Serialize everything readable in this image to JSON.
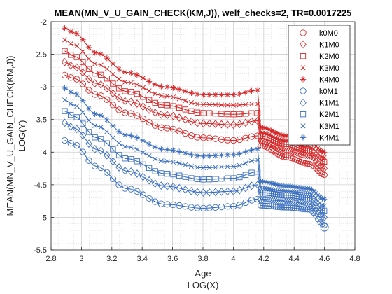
{
  "chart_data": {
    "type": "line",
    "title": "MEAN(MN_V_U_GAIN_CHECK(KM,J)), welf_checks=2, TR=0.0017225",
    "xlabel": "Age",
    "xlabel2": "LOG(X)",
    "ylabel": "MEAN(MN_V_U_GAIN_CHECK(KM,J))",
    "ylabel2": "LOG(Y)",
    "xlim": [
      2.8,
      4.8
    ],
    "ylim": [
      -5.5,
      -2
    ],
    "xticks": [
      "2.8",
      "3",
      "3.2",
      "3.4",
      "3.6",
      "3.8",
      "4",
      "4.2",
      "4.4",
      "4.6",
      "4.8"
    ],
    "yticks": [
      "-2",
      "-2.5",
      "-3",
      "-3.5",
      "-4",
      "-4.5",
      "-5",
      "-5.5"
    ],
    "grid": true,
    "minor_grid": true,
    "legend_position": "top-right",
    "x_range": [
      2.89,
      4.6
    ],
    "break_x": 4.17,
    "series": [
      {
        "name": "k0M0",
        "marker": "circle",
        "color": "#d62728",
        "values": [
          -2.82,
          -2.87,
          -3.12,
          -3.4,
          -3.63,
          -3.78,
          -3.82,
          -3.75,
          -3.9,
          -4.08,
          -4.18,
          -4.35
        ]
      },
      {
        "name": "K1M0",
        "marker": "diamond",
        "color": "#d62728",
        "values": [
          -2.62,
          -2.69,
          -2.95,
          -3.22,
          -3.43,
          -3.56,
          -3.58,
          -3.52,
          -3.83,
          -3.98,
          -4.05,
          -4.25
        ]
      },
      {
        "name": "K2M0",
        "marker": "square",
        "color": "#d62728",
        "values": [
          -2.45,
          -2.53,
          -2.8,
          -3.07,
          -3.28,
          -3.4,
          -3.42,
          -3.4,
          -3.75,
          -3.88,
          -3.98,
          -4.15
        ]
      },
      {
        "name": "K3M0",
        "marker": "x",
        "color": "#d62728",
        "values": [
          -2.28,
          -2.36,
          -2.65,
          -2.93,
          -3.14,
          -3.27,
          -3.28,
          -3.26,
          -3.7,
          -3.82,
          -3.92,
          -4.08
        ]
      },
      {
        "name": "K4M0",
        "marker": "asterisk",
        "color": "#d62728",
        "values": [
          -2.1,
          -2.17,
          -2.48,
          -2.78,
          -3.0,
          -3.12,
          -3.12,
          -3.05,
          -3.62,
          -3.75,
          -3.84,
          -4.0
        ]
      },
      {
        "name": "k0M1",
        "marker": "circle",
        "color": "#3a6fbf",
        "values": [
          -3.82,
          -3.88,
          -4.22,
          -4.56,
          -4.8,
          -4.86,
          -4.83,
          -4.72,
          -4.82,
          -4.85,
          -4.88,
          -5.12
        ]
      },
      {
        "name": "K1M1",
        "marker": "diamond",
        "color": "#3a6fbf",
        "values": [
          -3.55,
          -3.63,
          -3.96,
          -4.29,
          -4.52,
          -4.62,
          -4.6,
          -4.5,
          -4.72,
          -4.75,
          -4.8,
          -5.0
        ]
      },
      {
        "name": "K2M1",
        "marker": "square",
        "color": "#3a6fbf",
        "values": [
          -3.37,
          -3.45,
          -3.78,
          -4.1,
          -4.33,
          -4.42,
          -4.4,
          -4.3,
          -4.62,
          -4.66,
          -4.7,
          -4.9
        ]
      },
      {
        "name": "K3M1",
        "marker": "x",
        "color": "#3a6fbf",
        "values": [
          -3.2,
          -3.28,
          -3.6,
          -3.92,
          -4.14,
          -4.24,
          -4.22,
          -4.12,
          -4.55,
          -4.6,
          -4.63,
          -4.82
        ]
      },
      {
        "name": "K4M1",
        "marker": "asterisk",
        "color": "#3a6fbf",
        "values": [
          -3.02,
          -3.1,
          -3.42,
          -3.74,
          -3.96,
          -4.06,
          -4.04,
          -3.95,
          -4.45,
          -4.52,
          -4.56,
          -4.72
        ]
      }
    ],
    "x": [
      2.89,
      2.95,
      3.1,
      3.3,
      3.55,
      3.8,
      4.0,
      4.16,
      4.18,
      4.35,
      4.5,
      4.6
    ]
  }
}
